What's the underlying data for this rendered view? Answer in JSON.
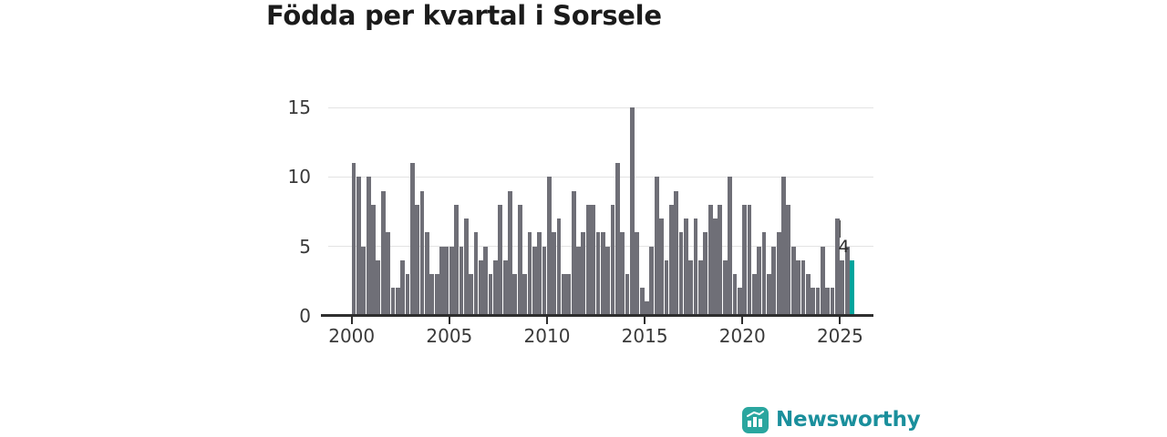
{
  "title": "Födda per kvartal i Sorsele",
  "chart_data": {
    "type": "bar",
    "title": "Födda per kvartal i Sorsele",
    "x_unit": "quarter",
    "start_period": "2000-Q1",
    "end_period": "2025-Q3",
    "x_tick_labels": [
      "2000",
      "2005",
      "2010",
      "2015",
      "2020",
      "2025"
    ],
    "y_tick_labels": [
      "0",
      "5",
      "10",
      "15"
    ],
    "ylim": [
      0,
      15.5
    ],
    "grid": "horizontal",
    "legend": "none",
    "series": [
      {
        "name": "Födda",
        "values": [
          11,
          10,
          5,
          10,
          8,
          4,
          9,
          6,
          2,
          2,
          4,
          3,
          11,
          8,
          9,
          6,
          3,
          3,
          5,
          5,
          5,
          8,
          5,
          7,
          3,
          6,
          4,
          5,
          3,
          4,
          8,
          4,
          9,
          3,
          8,
          3,
          6,
          5,
          6,
          5,
          10,
          6,
          7,
          3,
          3,
          9,
          5,
          6,
          8,
          8,
          6,
          6,
          5,
          8,
          11,
          6,
          3,
          15,
          6,
          2,
          1,
          5,
          10,
          7,
          4,
          8,
          9,
          6,
          7,
          4,
          7,
          4,
          6,
          8,
          7,
          8,
          4,
          10,
          3,
          2,
          8,
          8,
          3,
          5,
          6,
          3,
          5,
          6,
          10,
          8,
          5,
          4,
          4,
          3,
          2,
          2,
          5,
          2,
          2,
          7,
          4,
          5,
          4
        ]
      }
    ],
    "highlight": {
      "index_from_end": 0,
      "value": 4,
      "label": "4"
    },
    "colors": {
      "bar": "#6f6f77",
      "highlight": "#00a59d",
      "grid": "#e3e3e3",
      "axis": "#2e2e2e",
      "tick_text": "#3a3a3a",
      "title_text": "#1b1b1b"
    }
  },
  "branding": {
    "logo_text": "Newsworthy",
    "logo_text_color": "#1a8f9c",
    "logo_icon_color": "#2aa69f",
    "logo_icon": "newsworthy-bar-chart-icon"
  }
}
